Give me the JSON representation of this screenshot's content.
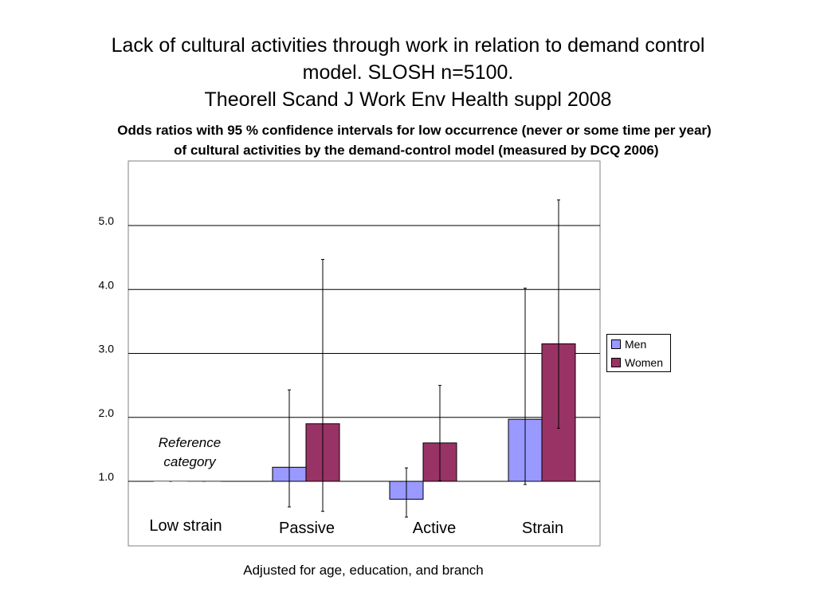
{
  "title_lines": [
    "Lack of cultural activities through work in relation to demand control",
    "model. SLOSH n=5100.",
    "Theorell Scand J Work Env Health suppl 2008"
  ],
  "subtitle_lines": [
    "Odds ratios with 95 % confidence intervals for low occurrence (never or some time per year)",
    " of cultural activities by the demand-control model (measured by DCQ 2006)"
  ],
  "reference_note": [
    "Reference",
    "category"
  ],
  "footnote": "Adjusted for age, education, and branch",
  "chart_data": {
    "type": "bar",
    "categories": [
      "Low strain",
      "Passive",
      "Active",
      "Strain"
    ],
    "baseline": 1.0,
    "series": [
      {
        "name": "Men",
        "color": "#9999ff",
        "values": [
          1.0,
          1.22,
          0.72,
          1.97
        ],
        "ci_low": [
          1.0,
          0.6,
          0.44,
          0.95
        ],
        "ci_high": [
          1.0,
          2.43,
          1.21,
          4.02
        ]
      },
      {
        "name": "Women",
        "color": "#993366",
        "values": [
          1.0,
          1.9,
          1.6,
          3.15
        ],
        "ci_low": [
          1.0,
          0.53,
          1.01,
          1.83
        ],
        "ci_high": [
          1.0,
          4.47,
          2.5,
          5.4
        ]
      }
    ],
    "yticks": [
      1.0,
      2.0,
      3.0,
      4.0,
      5.0
    ],
    "ytick_labels": [
      "1.0",
      "2.0",
      "3.0",
      "4.0",
      "5.0"
    ],
    "ylim": [
      0.0,
      6.0
    ],
    "grid": true,
    "legend_position": "right"
  }
}
